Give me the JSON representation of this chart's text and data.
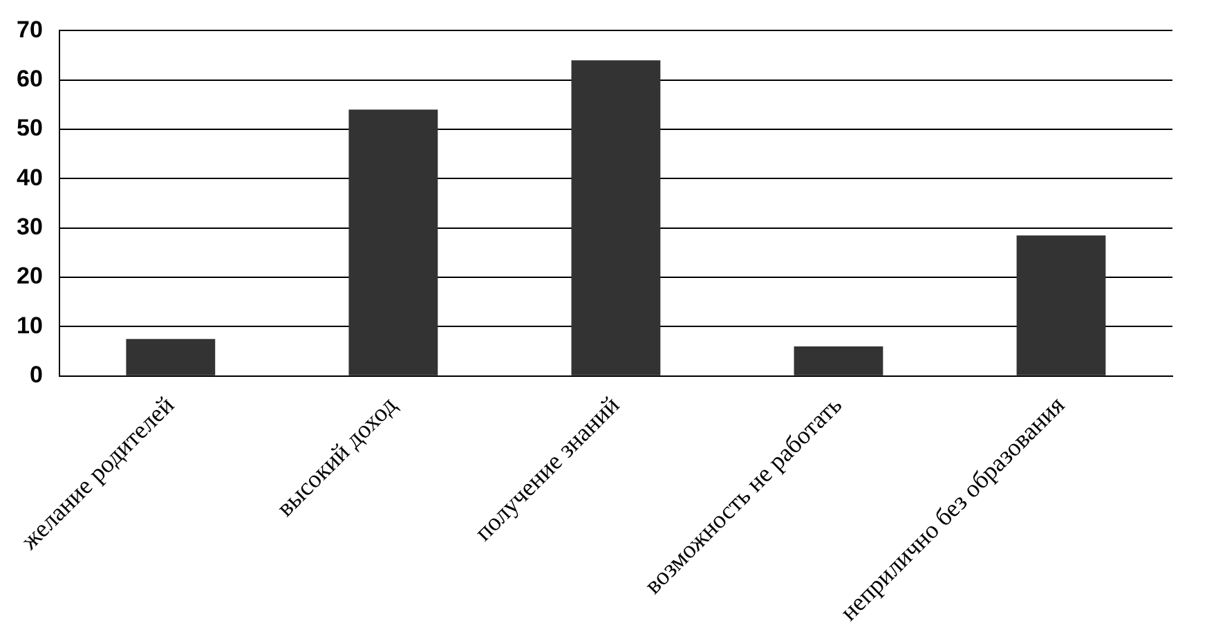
{
  "chart_data": {
    "type": "bar",
    "categories": [
      "желание родителей",
      "высокий доход",
      "получение знаний",
      "возможность не работать",
      "неприлично без образования"
    ],
    "values": [
      7.5,
      54,
      64,
      6,
      28.5
    ],
    "color": "#333333",
    "ylim": [
      0,
      70
    ],
    "yticks": [
      0,
      10,
      20,
      30,
      40,
      50,
      60,
      70
    ],
    "grid": "y",
    "legend": false
  }
}
